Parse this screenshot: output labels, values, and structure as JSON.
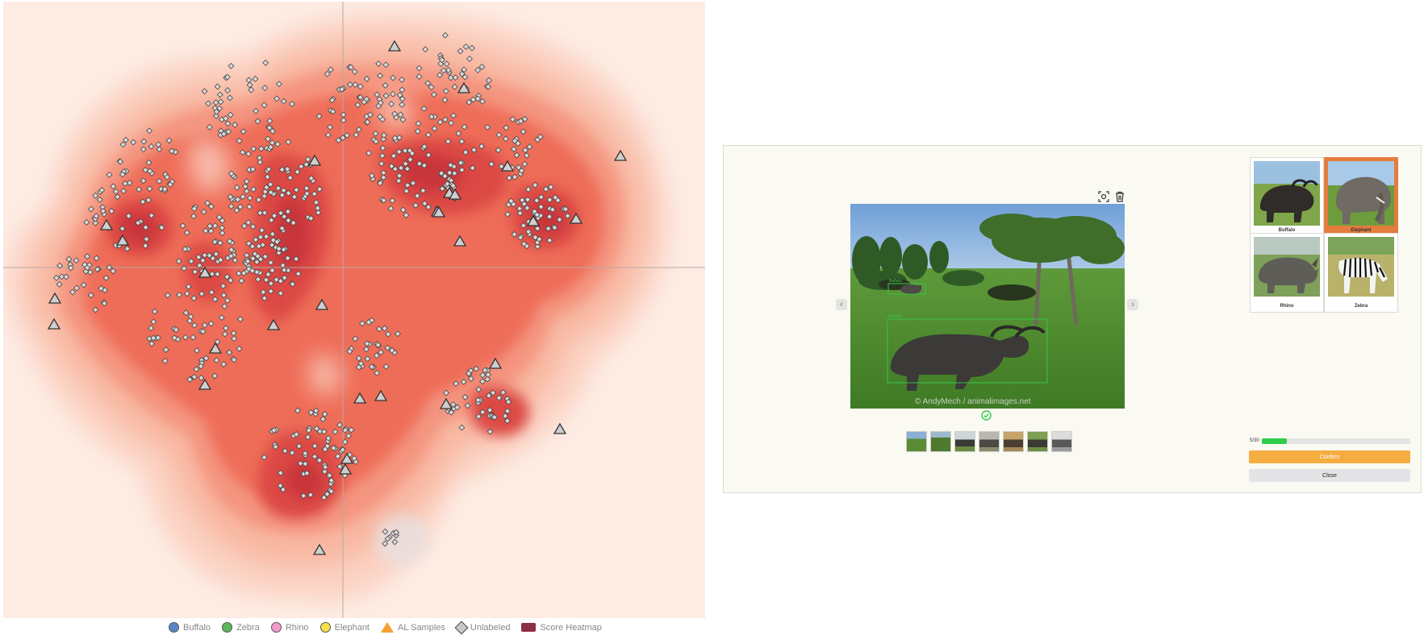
{
  "scatter": {
    "colors": {
      "background": "#fdece4",
      "heat_light": "#fbd2c2",
      "heat_mid": "#f0735f",
      "heat_dark": "#c0313a",
      "unlabeled": "#d9d9d9",
      "al_sample": "#cfcfcf"
    },
    "legend": [
      {
        "label": "Buffalo",
        "color": "#5a86c6",
        "shape": "circle"
      },
      {
        "label": "Zebra",
        "color": "#5cb85c",
        "shape": "circle"
      },
      {
        "label": "Rhino",
        "color": "#f29bcc",
        "shape": "circle"
      },
      {
        "label": "Elephant",
        "color": "#f4e24a",
        "shape": "circle"
      },
      {
        "label": "AL Samples",
        "color": "#f5a031",
        "shape": "triangle"
      },
      {
        "label": "Unlabeled",
        "color": "#c9c9c9",
        "shape": "diamond"
      },
      {
        "label": "Score Heatmap",
        "color": "#8c2f45",
        "shape": "rect"
      }
    ]
  },
  "labeler": {
    "tools": [
      {
        "icon": "focus-scan-icon"
      },
      {
        "icon": "trash-icon"
      }
    ],
    "nav": {
      "prev": "‹",
      "next": "›"
    },
    "main_image": {
      "boxes": [
        {
          "label": "Buffalo"
        },
        {
          "label": "Buffalo"
        }
      ],
      "watermark": "© AndyMech / animalimages.net"
    },
    "thumbnail_count": 7,
    "classes": [
      {
        "name": "Buffalo",
        "selected": false
      },
      {
        "name": "Elephant",
        "selected": true
      },
      {
        "name": "Rhino",
        "selected": false
      },
      {
        "name": "Zebra",
        "selected": false
      }
    ],
    "progress": {
      "label": "5/30",
      "current": 5,
      "total": 30,
      "color": "#2ecc4a"
    },
    "confirm_label": "Confirm",
    "close_label": "Close"
  }
}
